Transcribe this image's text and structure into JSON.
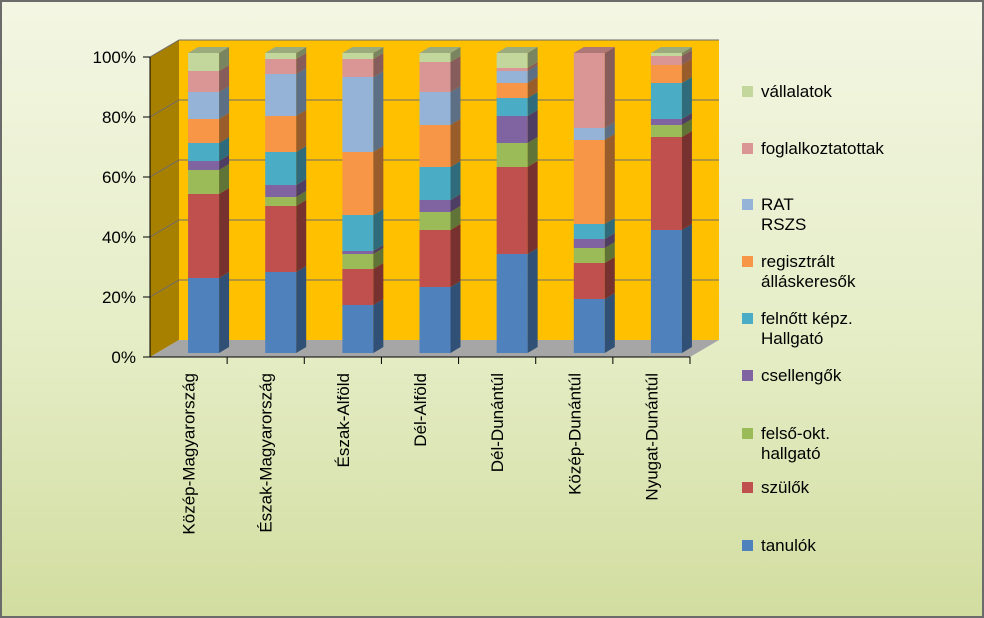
{
  "chart_data": {
    "type": "bar",
    "stacked": "percent",
    "categories": [
      "Közép-Magyarország",
      "Észak-Magyarország",
      "Észak-Alföld",
      "Dél-Alföld",
      "Dél-Dunántúl",
      "Közép-Dunántúl",
      "Nyugat-Dunántúl"
    ],
    "yticks": [
      "0%",
      "20%",
      "40%",
      "60%",
      "80%",
      "100%"
    ],
    "ylim": [
      0,
      100
    ],
    "series": [
      {
        "name": "tanulók",
        "label": "tanulók",
        "color": "#4f81bd",
        "values": [
          25,
          27,
          16,
          22,
          33,
          18,
          41
        ]
      },
      {
        "name": "szülők",
        "label": "szülők",
        "color": "#c0504d",
        "values": [
          28,
          22,
          12,
          19,
          29,
          12,
          31
        ]
      },
      {
        "name": "felső-okt. hallgató",
        "label": "felső-okt.\nhallgató",
        "color": "#9bbb59",
        "values": [
          8,
          3,
          5,
          6,
          8,
          5,
          4
        ]
      },
      {
        "name": "csellengők",
        "label": "csellengők",
        "color": "#8064a2",
        "values": [
          3,
          4,
          1,
          4,
          9,
          3,
          2
        ]
      },
      {
        "name": "felnőtt képz. Hallgató",
        "label": "felnőtt képz.\nHallgató",
        "color": "#4bacc6",
        "values": [
          6,
          11,
          12,
          11,
          6,
          5,
          12
        ]
      },
      {
        "name": "regisztrált álláskeresők",
        "label": "regisztrált\nálláskeresők",
        "color": "#f79646",
        "values": [
          8,
          12,
          21,
          14,
          5,
          28,
          6
        ]
      },
      {
        "name": "RAT RSZS",
        "label": "RAT\nRSZS",
        "color": "#95b3d7",
        "values": [
          9,
          14,
          25,
          11,
          4,
          4,
          0
        ]
      },
      {
        "name": "foglalkoztatottak",
        "label": "foglalkoztatottak",
        "color": "#d99694",
        "values": [
          7,
          5,
          6,
          10,
          1,
          25,
          3
        ]
      },
      {
        "name": "vállalatok",
        "label": "vállalatok",
        "color": "#c3d69b",
        "values": [
          6,
          2,
          2,
          3,
          5,
          0,
          1
        ]
      }
    ],
    "legend_order": [
      "vállalatok",
      "foglalkoztatottak",
      "RAT RSZS",
      "regisztrált álláskeresők",
      "felnőtt képz. Hallgató",
      "csellengők",
      "felső-okt. hallgató",
      "szülők",
      "tanulók"
    ],
    "legend_position": "right",
    "plot_background": "#ffc000",
    "floor_color": "#a6a6a6",
    "grid": true
  }
}
